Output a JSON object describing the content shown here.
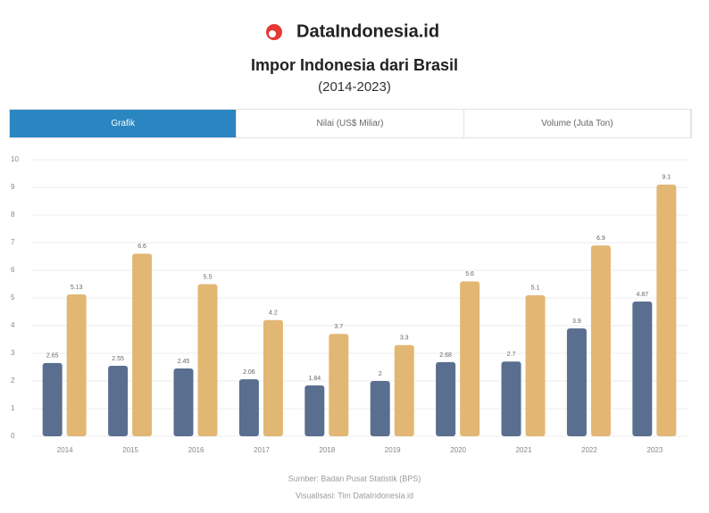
{
  "header": {
    "brand": "DataIndonesia.id"
  },
  "tabs": [
    "Grafik",
    "Nilai (US$ Miliar)",
    "Volume (Juta Ton)"
  ],
  "chart_data": {
    "type": "bar",
    "title": "Impor Indonesia dari Brasil",
    "subtitle": "(2014-2023)",
    "categories": [
      "2014",
      "2015",
      "2016",
      "2017",
      "2018",
      "2019",
      "2020",
      "2021",
      "2022",
      "2023"
    ],
    "series": [
      {
        "color": "#5a6f8f",
        "values": [
          2.65,
          2.55,
          2.45,
          2.06,
          1.84,
          2.0,
          2.68,
          2.7,
          3.9,
          4.87
        ]
      },
      {
        "color": "#e2b774",
        "values": [
          5.13,
          6.6,
          5.5,
          4.2,
          3.7,
          3.3,
          5.6,
          5.1,
          6.9,
          9.1
        ]
      }
    ],
    "ylim": [
      0,
      10
    ],
    "yticks": [
      0,
      1,
      2,
      3,
      4,
      5,
      6,
      7,
      8,
      9,
      10
    ],
    "grid": true,
    "notes": [
      "Sumber: Badan Pusat Statistik (BPS)",
      "Visualisasi: Tim DataIndonesia.id"
    ]
  }
}
